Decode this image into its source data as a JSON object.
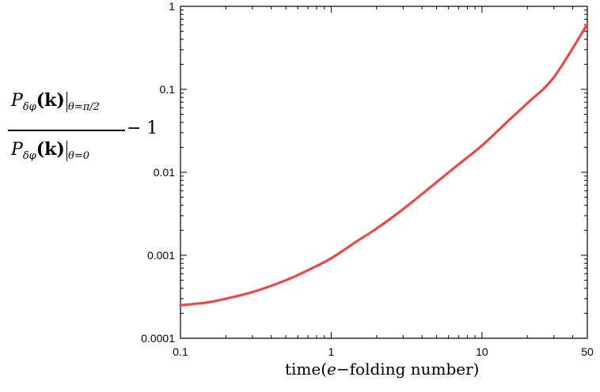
{
  "chart_data": {
    "type": "line",
    "title": "",
    "xlabel": {
      "prefix": "time(",
      "italic": "e",
      "suffix": "−folding number)"
    },
    "ylabel": {
      "numerator_main": "P",
      "numerator_sub": "δφ",
      "numerator_arg": "(k)",
      "numerator_eval": "θ=π/2",
      "denominator_main": "P",
      "denominator_sub": "δφ",
      "denominator_arg": "(k)",
      "denominator_eval": "θ=0",
      "tail": "− 1"
    },
    "xscale": "log",
    "yscale": "log",
    "xlim": [
      0.1,
      50
    ],
    "ylim": [
      0.0001,
      1
    ],
    "xticks": [
      {
        "value": 0.1,
        "label": "0.1"
      },
      {
        "value": 1,
        "label": "1"
      },
      {
        "value": 10,
        "label": "10"
      },
      {
        "value": 50,
        "label": "50"
      }
    ],
    "yticks": [
      {
        "value": 0.0001,
        "label": "0.0001"
      },
      {
        "value": 0.001,
        "label": "0.001"
      },
      {
        "value": 0.01,
        "label": "0.01"
      },
      {
        "value": 0.1,
        "label": "0.1"
      },
      {
        "value": 1,
        "label": "1"
      }
    ],
    "grid": false,
    "series": [
      {
        "color": "#ff3b3b",
        "x": [
          0.1,
          0.15,
          0.2,
          0.3,
          0.5,
          0.7,
          1,
          1.5,
          2,
          3,
          5,
          7,
          10,
          15,
          20,
          30,
          50
        ],
        "y": [
          0.00025,
          0.00027,
          0.0003,
          0.00036,
          0.0005,
          0.00066,
          0.00092,
          0.0015,
          0.0021,
          0.0036,
          0.0076,
          0.0125,
          0.021,
          0.042,
          0.068,
          0.14,
          0.61
        ]
      }
    ]
  }
}
